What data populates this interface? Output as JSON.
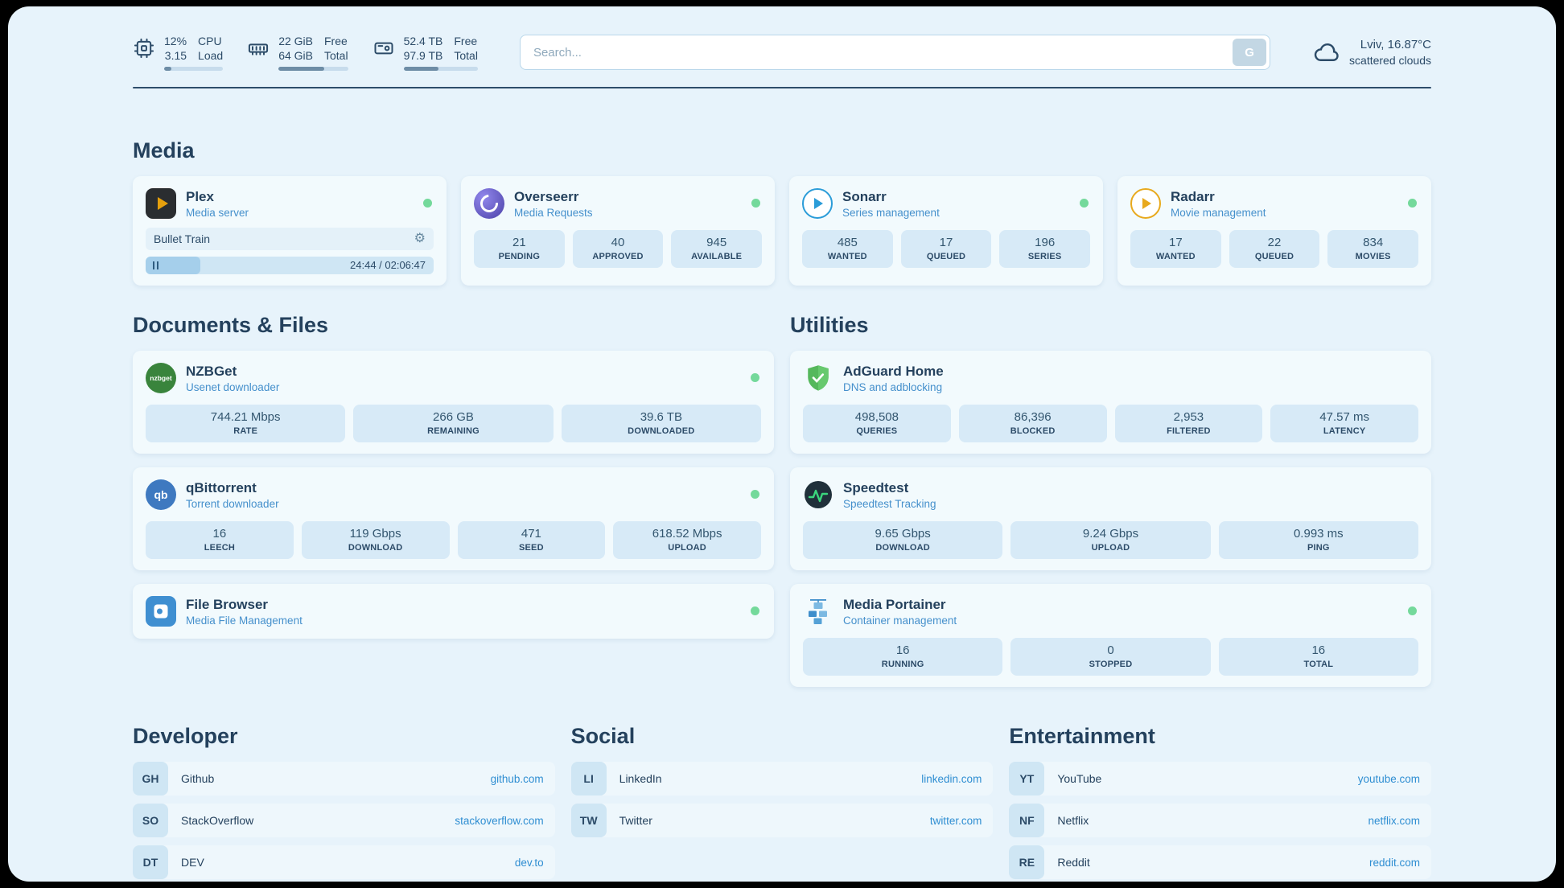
{
  "topbar": {
    "cpu": {
      "line1_value": "12%",
      "line2_value": "3.15",
      "line1_label": "CPU",
      "line2_label": "Load",
      "bar_pct": 12
    },
    "memory": {
      "line1_value": "22 GiB",
      "line2_value": "64 GiB",
      "line1_label": "Free",
      "line2_label": "Total",
      "bar_pct": 66
    },
    "disk": {
      "line1_value": "52.4 TB",
      "line2_value": "97.9 TB",
      "line1_label": "Free",
      "line2_label": "Total",
      "bar_pct": 47
    },
    "search": {
      "placeholder": "Search...",
      "provider_label": "G"
    },
    "weather": {
      "location": "Lviv, 16.87°C",
      "condition": "scattered clouds"
    }
  },
  "sections": {
    "media": "Media",
    "documents": "Documents & Files",
    "utilities": "Utilities",
    "developer": "Developer",
    "social": "Social",
    "entertainment": "Entertainment"
  },
  "services": {
    "plex": {
      "name": "Plex",
      "subtitle": "Media server",
      "status": "online",
      "now_playing": "Bullet Train",
      "progress_time": "24:44 / 02:06:47",
      "progress_pct": 19
    },
    "overseerr": {
      "name": "Overseerr",
      "subtitle": "Media Requests",
      "status": "online",
      "stats": [
        {
          "value": "21",
          "label": "PENDING"
        },
        {
          "value": "40",
          "label": "APPROVED"
        },
        {
          "value": "945",
          "label": "AVAILABLE"
        }
      ]
    },
    "sonarr": {
      "name": "Sonarr",
      "subtitle": "Series management",
      "status": "online",
      "stats": [
        {
          "value": "485",
          "label": "WANTED"
        },
        {
          "value": "17",
          "label": "QUEUED"
        },
        {
          "value": "196",
          "label": "SERIES"
        }
      ]
    },
    "radarr": {
      "name": "Radarr",
      "subtitle": "Movie management",
      "status": "online",
      "stats": [
        {
          "value": "17",
          "label": "WANTED"
        },
        {
          "value": "22",
          "label": "QUEUED"
        },
        {
          "value": "834",
          "label": "MOVIES"
        }
      ]
    },
    "nzbget": {
      "name": "NZBGet",
      "subtitle": "Usenet downloader",
      "status": "online",
      "icon_text": "nzbget",
      "stats": [
        {
          "value": "744.21 Mbps",
          "label": "RATE"
        },
        {
          "value": "266 GB",
          "label": "REMAINING"
        },
        {
          "value": "39.6 TB",
          "label": "DOWNLOADED"
        }
      ]
    },
    "qbittorrent": {
      "name": "qBittorrent",
      "subtitle": "Torrent downloader",
      "status": "online",
      "icon_text": "qb",
      "stats": [
        {
          "value": "16",
          "label": "LEECH"
        },
        {
          "value": "119 Gbps",
          "label": "DOWNLOAD"
        },
        {
          "value": "471",
          "label": "SEED"
        },
        {
          "value": "618.52 Mbps",
          "label": "UPLOAD"
        }
      ]
    },
    "filebrowser": {
      "name": "File Browser",
      "subtitle": "Media File Management",
      "status": "online"
    },
    "adguard": {
      "name": "AdGuard Home",
      "subtitle": "DNS and adblocking",
      "stats": [
        {
          "value": "498,508",
          "label": "QUERIES"
        },
        {
          "value": "86,396",
          "label": "BLOCKED"
        },
        {
          "value": "2,953",
          "label": "FILTERED"
        },
        {
          "value": "47.57 ms",
          "label": "LATENCY"
        }
      ]
    },
    "speedtest": {
      "name": "Speedtest",
      "subtitle": "Speedtest Tracking",
      "stats": [
        {
          "value": "9.65 Gbps",
          "label": "DOWNLOAD"
        },
        {
          "value": "9.24 Gbps",
          "label": "UPLOAD"
        },
        {
          "value": "0.993 ms",
          "label": "PING"
        }
      ]
    },
    "portainer": {
      "name": "Media Portainer",
      "subtitle": "Container management",
      "status": "online",
      "stats": [
        {
          "value": "16",
          "label": "RUNNING"
        },
        {
          "value": "0",
          "label": "STOPPED"
        },
        {
          "value": "16",
          "label": "TOTAL"
        }
      ]
    }
  },
  "bookmarks": {
    "developer": [
      {
        "abbr": "GH",
        "name": "Github",
        "url": "github.com"
      },
      {
        "abbr": "SO",
        "name": "StackOverflow",
        "url": "stackoverflow.com"
      },
      {
        "abbr": "DT",
        "name": "DEV",
        "url": "dev.to"
      }
    ],
    "social": [
      {
        "abbr": "LI",
        "name": "LinkedIn",
        "url": "linkedin.com"
      },
      {
        "abbr": "TW",
        "name": "Twitter",
        "url": "twitter.com"
      }
    ],
    "entertainment": [
      {
        "abbr": "YT",
        "name": "YouTube",
        "url": "youtube.com"
      },
      {
        "abbr": "NF",
        "name": "Netflix",
        "url": "netflix.com"
      },
      {
        "abbr": "RE",
        "name": "Reddit",
        "url": "reddit.com"
      }
    ]
  },
  "colors": {
    "bg": "#e7f3fb",
    "card": "#f2fafd",
    "box": "#d7eaf7",
    "text": "#2c4b68",
    "accent": "#3f8fd1",
    "link": "#2f8ed2",
    "green": "#74d99b",
    "divider": "#2e4d6b"
  }
}
